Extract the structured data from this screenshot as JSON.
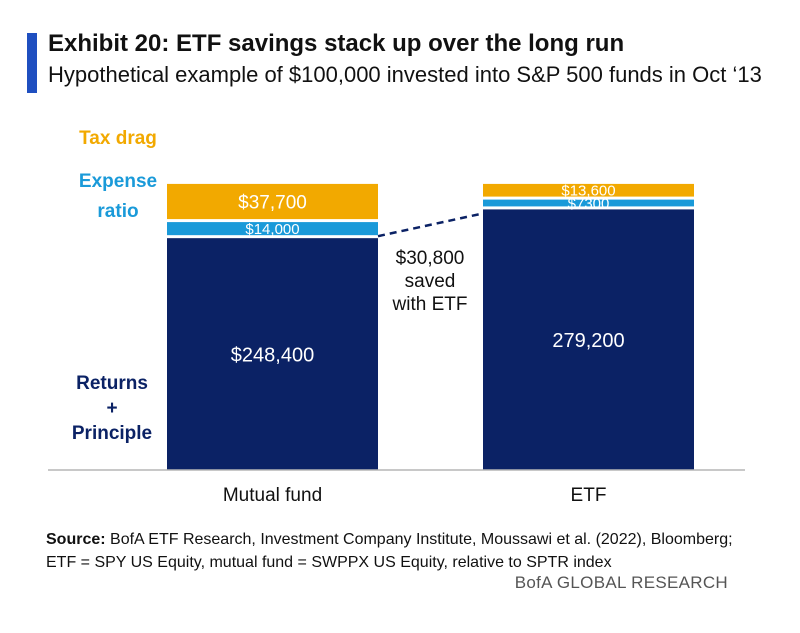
{
  "title": "Exhibit 20: ETF savings stack up over the long run",
  "subtitle": "Hypothetical example of $100,000 invested into S&P 500 funds in Oct ‘13",
  "source_label": "Source:",
  "source_line1": "BofA ETF Research, Investment Company Institute, Moussawi et al. (2022), Bloomberg;",
  "source_line2": "ETF = SPY US Equity, mutual fund = SWPPX US Equity, relative to SPTR index",
  "brand": "BofA GLOBAL RESEARCH",
  "colors": {
    "returns": "#0b2265",
    "expense": "#1a9ad9",
    "tax": "#f2a900",
    "accent": "#1f4fc0"
  },
  "chart_data": {
    "type": "bar",
    "stacked": true,
    "categories": [
      "Mutual fund",
      "ETF"
    ],
    "series": [
      {
        "name": "Returns + Principle",
        "legend_lines": [
          "Returns",
          "+",
          "Principle"
        ],
        "values": [
          248400,
          279200
        ],
        "labels": [
          "$248,400",
          "279,200"
        ]
      },
      {
        "name": "Expense ratio",
        "legend_lines": [
          "Expense",
          "ratio"
        ],
        "values": [
          14000,
          7300
        ],
        "labels": [
          "$14,000",
          "$7300"
        ]
      },
      {
        "name": "Tax drag",
        "legend_lines": [
          "Tax drag"
        ],
        "values": [
          37700,
          13600
        ],
        "labels": [
          "$37,700",
          "$13,600"
        ]
      }
    ],
    "annotation_lines": [
      "$30,800",
      "saved",
      "with ETF"
    ],
    "ylim": [
      0,
      300000
    ]
  }
}
